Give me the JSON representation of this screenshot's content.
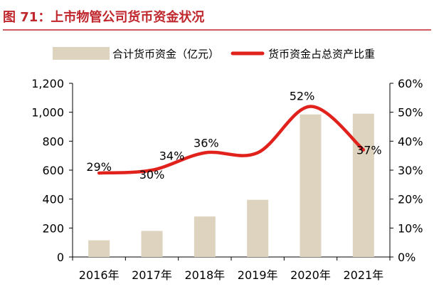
{
  "figure": {
    "caption": "图 71：上市物管公司货币资金状况",
    "title_color": "#c0272d",
    "rule_color": "#c0272d"
  },
  "chart_data": {
    "type": "bar",
    "categories": [
      "2016年",
      "2017年",
      "2018年",
      "2019年",
      "2020年",
      "2021年"
    ],
    "series": [
      {
        "name": "合计货币资金（亿元）",
        "type": "bar",
        "axis": "left",
        "color": "#ddd3bf",
        "values": [
          115,
          180,
          280,
          395,
          985,
          990
        ]
      },
      {
        "name": "货币资金占总资产比重",
        "type": "line",
        "axis": "right",
        "color": "#e0211c",
        "values": [
          0.29,
          0.3,
          0.36,
          0.36,
          0.52,
          0.37
        ],
        "labels": [
          "29%",
          "30%",
          "36%",
          "",
          "52%",
          "37%"
        ]
      }
    ],
    "annotations": [
      {
        "text": "34%",
        "x": "2017年",
        "y": 0.34
      }
    ],
    "y_left": {
      "min": 0,
      "max": 1200,
      "ticks": [
        "0",
        "200",
        "400",
        "600",
        "800",
        "1,000",
        "1,200"
      ]
    },
    "y_right": {
      "min": 0,
      "max": 0.6,
      "ticks": [
        "0%",
        "10%",
        "20%",
        "30%",
        "40%",
        "50%",
        "60%"
      ]
    },
    "legend_position": "top",
    "grid": false
  }
}
